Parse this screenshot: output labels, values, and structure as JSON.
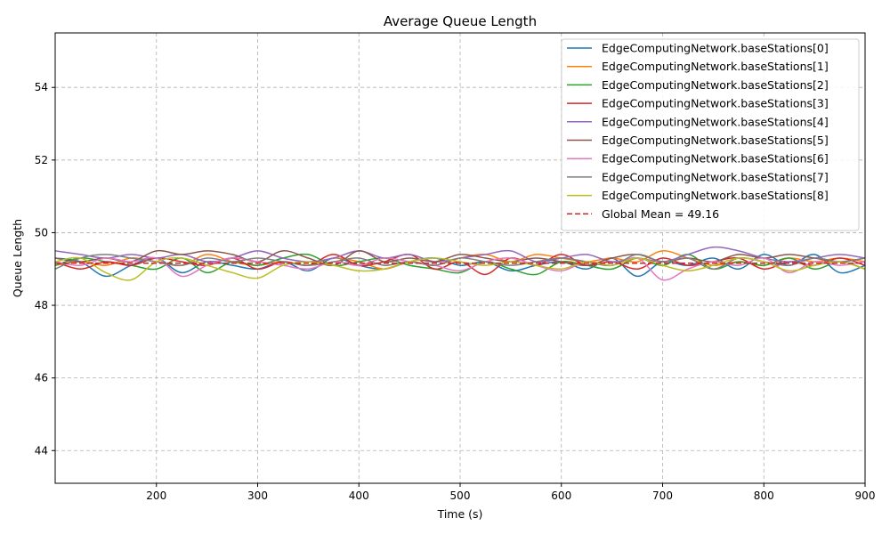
{
  "chart_data": {
    "type": "line",
    "title": "Average Queue Length",
    "xlabel": "Time (s)",
    "ylabel": "Queue Length",
    "xlim": [
      100,
      900
    ],
    "ylim": [
      43.1,
      55.5
    ],
    "xticks": [
      200,
      300,
      400,
      500,
      600,
      700,
      800,
      900
    ],
    "yticks": [
      44,
      46,
      48,
      50,
      52,
      54
    ],
    "grid": true,
    "legend_position": "upper right",
    "x": [
      100,
      125,
      150,
      175,
      200,
      225,
      250,
      275,
      300,
      325,
      350,
      375,
      400,
      425,
      450,
      475,
      500,
      525,
      550,
      575,
      600,
      625,
      650,
      675,
      700,
      725,
      750,
      775,
      800,
      825,
      850,
      875,
      900
    ],
    "series": [
      {
        "name": "EdgeComputingNetwork.baseStations[0]",
        "color": "#1f77b4",
        "values": [
          49.3,
          49.2,
          48.8,
          49.1,
          49.3,
          48.9,
          49.2,
          49.1,
          49.0,
          49.2,
          48.95,
          49.3,
          49.1,
          49.0,
          49.2,
          49.3,
          49.1,
          49.2,
          48.95,
          49.1,
          49.2,
          49.0,
          49.3,
          48.8,
          49.2,
          49.1,
          49.3,
          49.0,
          49.4,
          49.1,
          49.4,
          48.9,
          49.1
        ]
      },
      {
        "name": "EdgeComputingNetwork.baseStations[1]",
        "color": "#ff7f0e",
        "values": [
          49.1,
          49.2,
          49.1,
          49.3,
          49.2,
          49.1,
          49.4,
          49.2,
          49.1,
          49.2,
          49.1,
          49.3,
          49.2,
          49.0,
          49.2,
          49.1,
          49.3,
          49.4,
          49.2,
          49.4,
          49.3,
          49.2,
          49.3,
          49.2,
          49.5,
          49.3,
          49.1,
          49.2,
          49.1,
          49.3,
          49.2,
          49.3,
          49.2
        ]
      },
      {
        "name": "EdgeComputingNetwork.baseStations[2]",
        "color": "#2ca02c",
        "values": [
          49.1,
          49.3,
          49.2,
          49.1,
          49.0,
          49.3,
          48.9,
          49.2,
          49.1,
          49.3,
          49.4,
          49.1,
          49.2,
          49.3,
          49.1,
          49.0,
          48.9,
          49.2,
          49.0,
          48.85,
          49.2,
          49.1,
          49.0,
          49.3,
          49.1,
          49.4,
          49.0,
          49.2,
          49.1,
          49.3,
          49.0,
          49.2,
          49.0
        ]
      },
      {
        "name": "EdgeComputingNetwork.baseStations[3]",
        "color": "#d62728",
        "values": [
          49.2,
          49.0,
          49.2,
          49.1,
          49.3,
          49.2,
          49.1,
          49.3,
          49.0,
          49.2,
          49.1,
          49.4,
          49.1,
          49.2,
          49.4,
          49.0,
          49.2,
          48.85,
          49.3,
          49.1,
          49.4,
          49.1,
          49.2,
          49.0,
          49.3,
          49.1,
          49.2,
          49.3,
          49.0,
          49.2,
          49.1,
          49.3,
          49.1
        ]
      },
      {
        "name": "EdgeComputingNetwork.baseStations[4]",
        "color": "#9467bd",
        "values": [
          49.5,
          49.4,
          49.3,
          49.4,
          49.3,
          49.4,
          49.2,
          49.3,
          49.5,
          49.3,
          49.2,
          49.3,
          49.5,
          49.3,
          49.4,
          49.2,
          49.3,
          49.4,
          49.5,
          49.2,
          49.3,
          49.4,
          49.2,
          49.3,
          49.2,
          49.4,
          49.6,
          49.5,
          49.3,
          49.2,
          49.3,
          49.4,
          49.3
        ]
      },
      {
        "name": "EdgeComputingNetwork.baseStations[5]",
        "color": "#8c564b",
        "values": [
          49.3,
          49.2,
          49.3,
          49.2,
          49.5,
          49.4,
          49.5,
          49.4,
          49.2,
          49.5,
          49.3,
          49.1,
          49.5,
          49.2,
          49.3,
          49.2,
          49.4,
          49.3,
          49.2,
          49.3,
          49.2,
          49.1,
          49.3,
          49.4,
          49.2,
          49.3,
          49.2,
          49.4,
          49.3,
          49.4,
          49.3,
          49.2,
          49.3
        ]
      },
      {
        "name": "EdgeComputingNetwork.baseStations[6]",
        "color": "#e377c2",
        "values": [
          49.2,
          49.1,
          49.3,
          49.2,
          49.3,
          48.8,
          49.1,
          49.3,
          49.2,
          49.1,
          49.0,
          49.2,
          49.1,
          49.3,
          49.2,
          49.1,
          48.95,
          49.2,
          49.3,
          49.1,
          48.95,
          49.2,
          49.1,
          49.3,
          48.7,
          49.0,
          49.2,
          49.1,
          49.3,
          48.9,
          49.2,
          49.1,
          49.2
        ]
      },
      {
        "name": "EdgeComputingNetwork.baseStations[7]",
        "color": "#7f7f7f",
        "values": [
          49.0,
          49.3,
          49.4,
          49.3,
          49.2,
          49.1,
          49.3,
          49.2,
          49.3,
          49.2,
          49.1,
          49.2,
          49.3,
          49.1,
          49.2,
          49.1,
          49.3,
          49.2,
          49.1,
          49.2,
          49.3,
          49.2,
          49.1,
          49.4,
          49.2,
          49.3,
          49.0,
          49.3,
          49.2,
          49.1,
          49.3,
          49.2,
          49.3
        ]
      },
      {
        "name": "EdgeComputingNetwork.baseStations[8]",
        "color": "#bcbd22",
        "values": [
          49.2,
          49.3,
          48.9,
          48.7,
          49.2,
          49.3,
          49.1,
          48.9,
          48.75,
          49.1,
          49.2,
          49.1,
          48.95,
          49.0,
          49.2,
          49.3,
          49.2,
          49.1,
          49.2,
          49.1,
          49.0,
          49.2,
          49.1,
          49.3,
          49.1,
          48.95,
          49.1,
          49.3,
          49.2,
          48.95,
          49.1,
          49.2,
          49.0
        ]
      }
    ],
    "mean_line": {
      "label": "Global Mean = 49.16",
      "value": 49.16,
      "color": "#d62728",
      "style": "dashed"
    }
  }
}
